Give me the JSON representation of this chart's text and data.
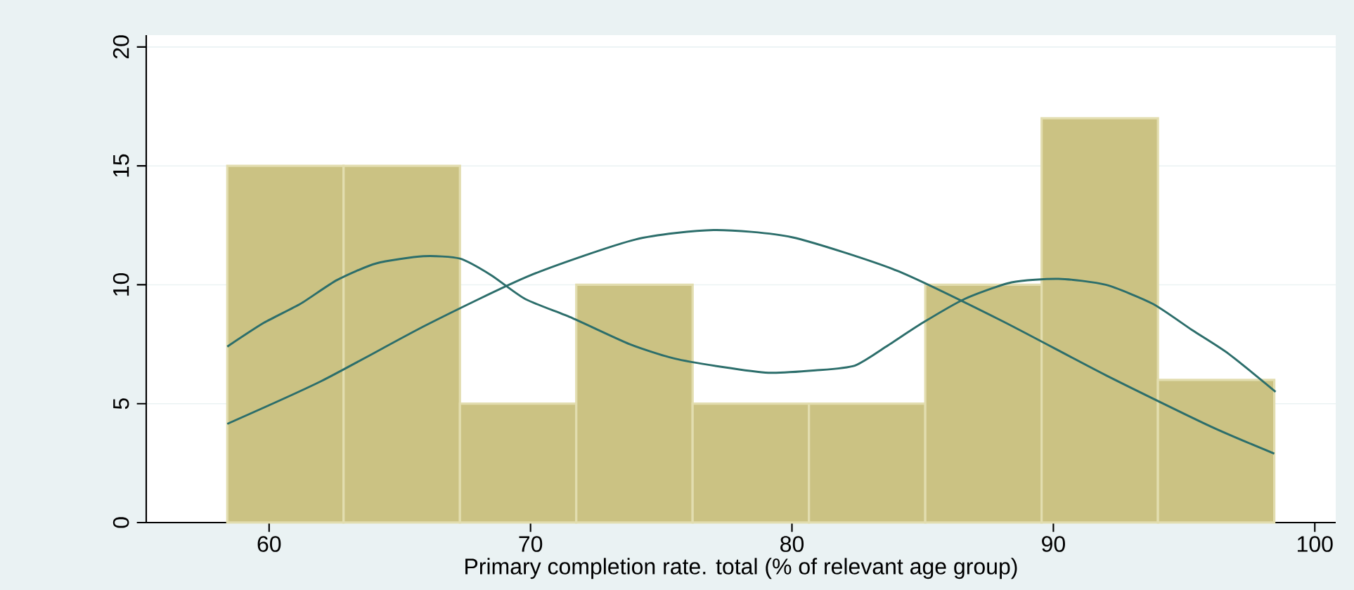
{
  "chart_data": {
    "type": "histogram",
    "xlabel": "Primary completion rate. total (% of relevant age group)",
    "bins": [
      58.4,
      62.85,
      67.3,
      71.75,
      76.2,
      80.65,
      85.1,
      89.55,
      94.0,
      98.45
    ],
    "values": [
      15,
      15,
      5,
      10,
      5,
      5,
      10,
      17,
      6
    ],
    "color": "#cbc283",
    "series": [
      {
        "type": "line",
        "color": "#2c6e6b",
        "x": [
          58.4,
          59.8,
          61.2,
          62.6,
          64.1,
          65.9,
          67.3,
          68.5,
          69.8,
          71.6,
          73.8,
          75.5,
          77.3,
          79.1,
          80.9,
          82.4,
          83.6,
          85.0,
          86.6,
          88.4,
          90.2,
          92.0,
          93.8,
          95.3,
          96.7,
          98.5
        ],
        "values": [
          7.4,
          8.4,
          9.2,
          10.2,
          10.9,
          11.2,
          11.1,
          10.4,
          9.4,
          8.6,
          7.5,
          6.9,
          6.55,
          6.3,
          6.4,
          6.6,
          7.4,
          8.4,
          9.4,
          10.1,
          10.25,
          10.0,
          9.2,
          8.1,
          7.1,
          5.5
        ]
      },
      {
        "type": "line",
        "color": "#2c6e6b",
        "x": [
          58.4,
          62,
          66,
          70,
          74,
          77,
          80,
          84,
          88,
          92,
          96,
          98.45
        ],
        "values": [
          4.15,
          5.95,
          8.3,
          10.4,
          11.9,
          12.3,
          12.0,
          10.6,
          8.5,
          6.2,
          4.05,
          2.9
        ]
      }
    ],
    "xlim": [
      55.3,
      100.8
    ],
    "ylim": [
      0,
      20.5
    ],
    "xticks": [
      60,
      70,
      80,
      90,
      100
    ],
    "yticks": [
      0,
      5,
      10,
      15,
      20
    ],
    "grid": "y"
  }
}
